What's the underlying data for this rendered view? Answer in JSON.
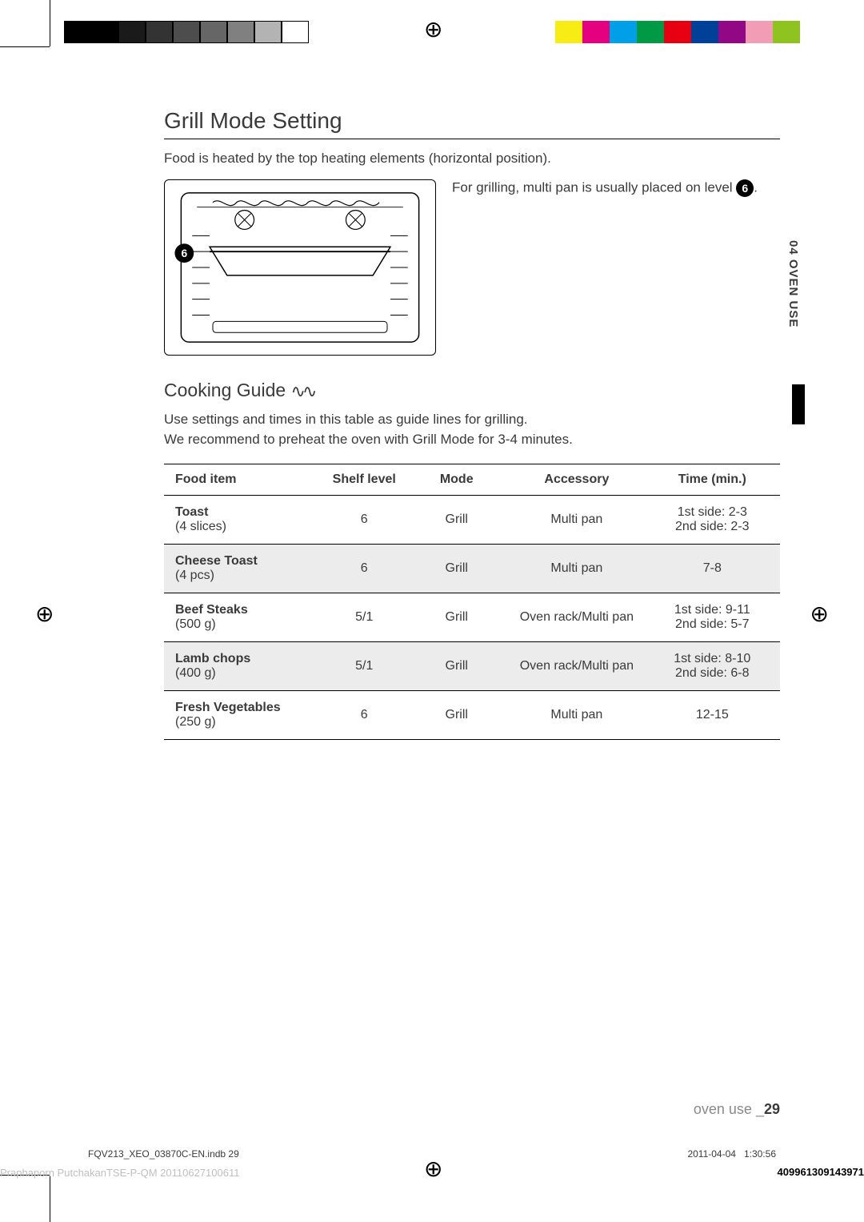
{
  "print_marks": {
    "gray_shades": [
      "#000000",
      "#000000",
      "#1a1a1a",
      "#333333",
      "#4d4d4d",
      "#666666",
      "#808080",
      "#b3b3b3",
      "#ffffff"
    ],
    "gray_border": "#000000",
    "color_swatches": [
      "#f7ec13",
      "#e4007f",
      "#00a0e9",
      "#009944",
      "#e60012",
      "#004098",
      "#920783",
      "#f19db5",
      "#8fc31f"
    ]
  },
  "header": {
    "title": "Grill Mode Setting",
    "intro": "Food is heated by the top heating elements (horizontal position).",
    "figure_text_before": "For grilling, multi pan is usually placed on level ",
    "figure_level": "6",
    "figure_text_after": "."
  },
  "cooking_guide": {
    "title": "Cooking Guide",
    "text_line1": "Use settings and times in this table as guide lines for grilling.",
    "text_line2": "We recommend to preheat the oven with Grill Mode for 3-4 minutes."
  },
  "table": {
    "columns": [
      "Food item",
      "Shelf level",
      "Mode",
      "Accessory",
      "Time (min.)"
    ],
    "rows": [
      {
        "name": "Toast",
        "qty": "(4 slices)",
        "shelf": "6",
        "mode": "Grill",
        "accessory": "Multi pan",
        "time1": "1st side: 2-3",
        "time2": "2nd side: 2-3",
        "shaded": false
      },
      {
        "name": "Cheese Toast",
        "qty": "(4 pcs)",
        "shelf": "6",
        "mode": "Grill",
        "accessory": "Multi pan",
        "time1": "7-8",
        "time2": "",
        "shaded": true
      },
      {
        "name": "Beef Steaks",
        "qty": "(500 g)",
        "shelf": "5/1",
        "mode": "Grill",
        "accessory": "Oven rack/Multi pan",
        "time1": "1st side: 9-11",
        "time2": "2nd side: 5-7",
        "shaded": false
      },
      {
        "name": "Lamb chops",
        "qty": "(400 g)",
        "shelf": "5/1",
        "mode": "Grill",
        "accessory": "Oven rack/Multi pan",
        "time1": "1st side: 8-10",
        "time2": "2nd side: 6-8",
        "shaded": true
      },
      {
        "name": "Fresh Vegetables",
        "qty": "(250 g)",
        "shelf": "6",
        "mode": "Grill",
        "accessory": "Multi pan",
        "time1": "12-15",
        "time2": "",
        "shaded": false
      }
    ]
  },
  "side_tab": "04 OVEN USE",
  "footer": {
    "label": "oven use _",
    "page": "29",
    "file": "FQV213_XEO_03870C-EN.indb   29",
    "date": "2011-04-04",
    "time": "1:30:56",
    "code": "409961309143971",
    "watermark": "Praphaporn PutchakanTSE-P-QM  20110627100611"
  }
}
